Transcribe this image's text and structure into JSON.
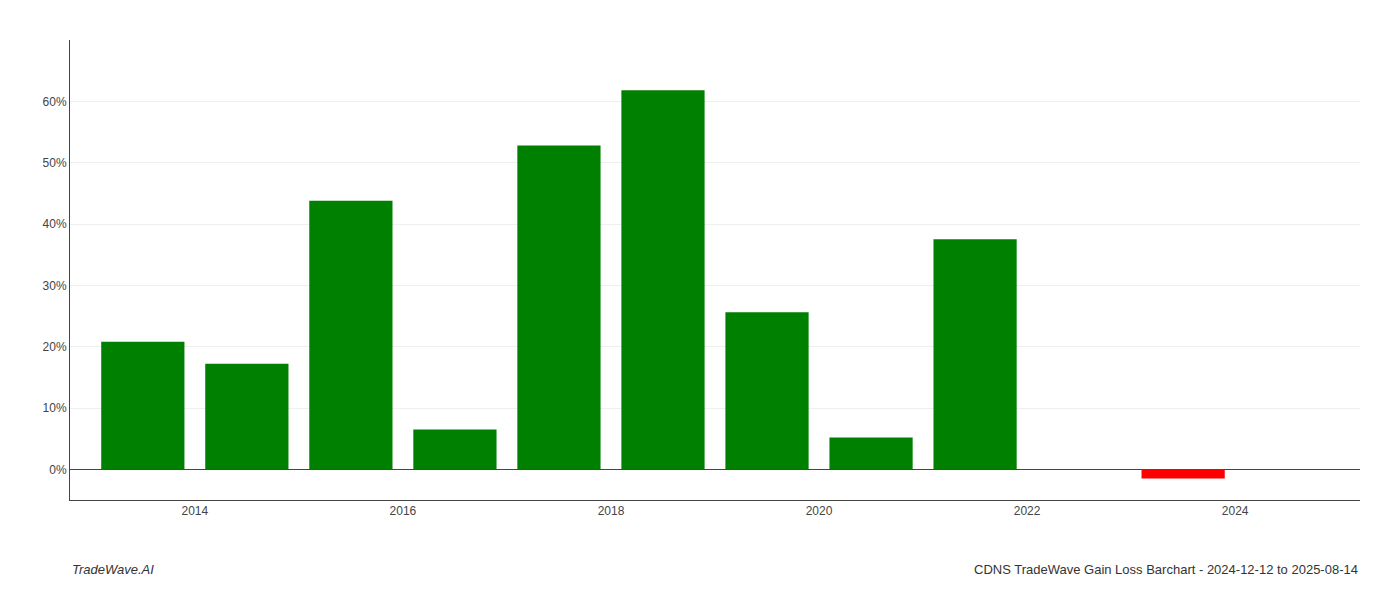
{
  "chart_data": {
    "type": "bar",
    "x": [
      2013.5,
      2014.5,
      2015.5,
      2016.5,
      2017.5,
      2018.5,
      2019.5,
      2020.5,
      2021.5,
      2023.5
    ],
    "values": [
      0.208,
      0.172,
      0.438,
      0.065,
      0.528,
      0.618,
      0.256,
      0.052,
      0.375,
      -0.015
    ],
    "colors": [
      "#008000",
      "#008000",
      "#008000",
      "#008000",
      "#008000",
      "#008000",
      "#008000",
      "#008000",
      "#008000",
      "#ff0000"
    ],
    "xlim": [
      2012.8,
      2025.2
    ],
    "xticks": [
      2014,
      2016,
      2018,
      2020,
      2022,
      2024
    ],
    "ylim": [
      -0.05,
      0.7
    ],
    "yticks": [
      {
        "value": 0.0,
        "label": "0%"
      },
      {
        "value": 0.1,
        "label": "10%"
      },
      {
        "value": 0.2,
        "label": "20%"
      },
      {
        "value": 0.3,
        "label": "30%"
      },
      {
        "value": 0.4,
        "label": "40%"
      },
      {
        "value": 0.5,
        "label": "50%"
      },
      {
        "value": 0.6,
        "label": "60%"
      }
    ],
    "grid": true,
    "annotations": [
      "TradeWave.AI",
      "CDNS TradeWave Gain Loss Barchart - 2024-12-12 to 2025-08-14"
    ]
  }
}
